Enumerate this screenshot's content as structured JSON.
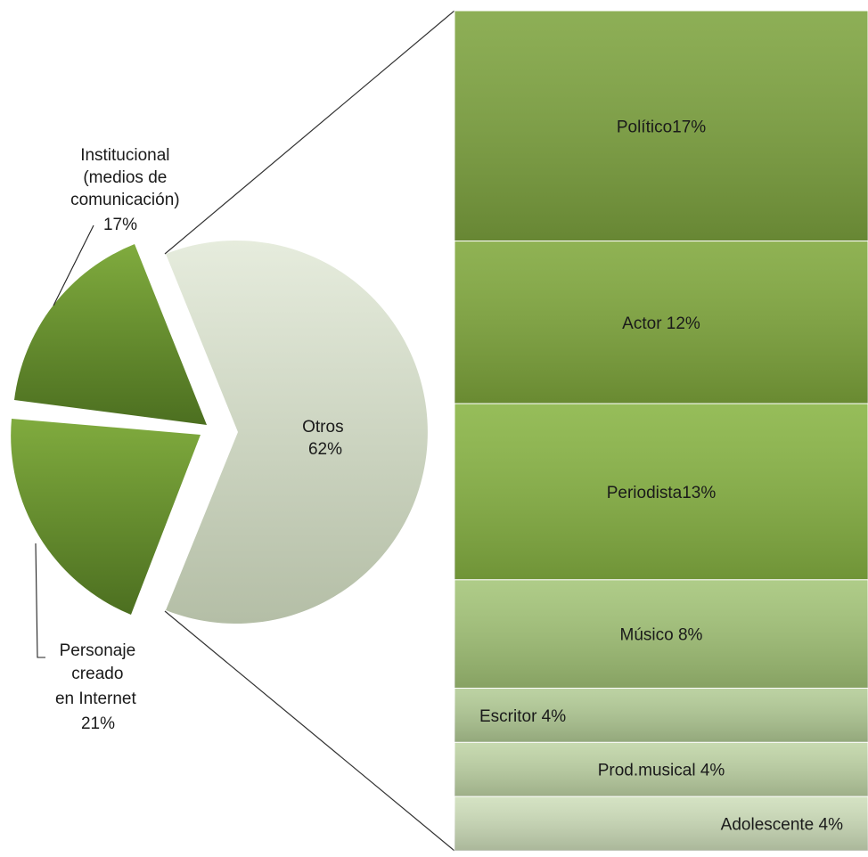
{
  "chart_data": {
    "type": "bar-of-pie",
    "pie": {
      "slices": [
        {
          "label": "Otros",
          "value": 62,
          "display": "62%",
          "color": "#c3cdb6"
        },
        {
          "label": "Personaje creado en Internet",
          "value": 21,
          "display": "21%",
          "color": "#5e8a2c"
        },
        {
          "label": "Institucional (medios de comunicación)",
          "value": 17,
          "display": "17%",
          "color": "#6b9632"
        }
      ],
      "label_lines": {
        "otros": [
          "Otros",
          "62%"
        ],
        "personaje": [
          "Personaje",
          "creado",
          "en Internet",
          "21%"
        ],
        "institucional": [
          "Institucional",
          "(medios de",
          "comunicación)",
          "17%"
        ]
      }
    },
    "breakdown": {
      "of": "Otros",
      "items": [
        {
          "label": "Político17%",
          "value": 17,
          "color": "#7ea43f"
        },
        {
          "label": "Actor 12%",
          "value": 12,
          "color": "#80a83c"
        },
        {
          "label": "Periodista13%",
          "value": 13,
          "color": "#88b443"
        },
        {
          "label": "Músico 8%",
          "value": 8,
          "color": "#a4c578"
        },
        {
          "label": "Escritor 4%",
          "value": 4,
          "color": "#b3cc96"
        },
        {
          "label": "Prod.musical 4%",
          "value": 4,
          "color": "#c0d5a6"
        },
        {
          "label": "Adolescente 4%",
          "value": 4,
          "color": "#cfdfbb"
        }
      ]
    }
  }
}
